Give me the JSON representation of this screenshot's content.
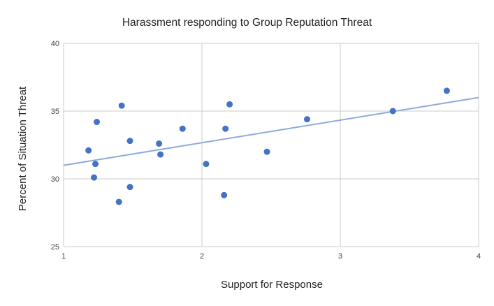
{
  "chart_data": {
    "type": "scatter",
    "title": "Harassment responding to Group Reputation Threat",
    "xlabel": "Support for Response",
    "ylabel": "Percent of Situation Threat",
    "xlim": [
      1,
      4
    ],
    "ylim": [
      25,
      40
    ],
    "xticks": [
      1,
      2,
      3,
      4
    ],
    "yticks": [
      25,
      30,
      35,
      40
    ],
    "grid": true,
    "legend": "none",
    "colors": {
      "points": "#4472c4",
      "trendline": "#8eaadb",
      "grid": "#cccccc"
    },
    "trendline": {
      "type": "linear",
      "x": [
        1,
        4
      ],
      "y": [
        31.0,
        36.0
      ]
    },
    "series": [
      {
        "x": [
          1.18,
          1.22,
          1.23,
          1.24,
          1.4,
          1.42,
          1.48,
          1.48,
          1.69,
          1.7,
          1.86,
          2.03,
          2.16,
          2.17,
          2.2,
          2.47,
          2.76,
          3.38,
          3.77
        ],
        "y": [
          32.1,
          30.1,
          31.1,
          34.2,
          28.3,
          35.4,
          29.4,
          32.8,
          32.6,
          31.8,
          33.7,
          31.1,
          28.8,
          33.7,
          35.5,
          32.0,
          34.4,
          35.0,
          36.5
        ]
      }
    ]
  }
}
